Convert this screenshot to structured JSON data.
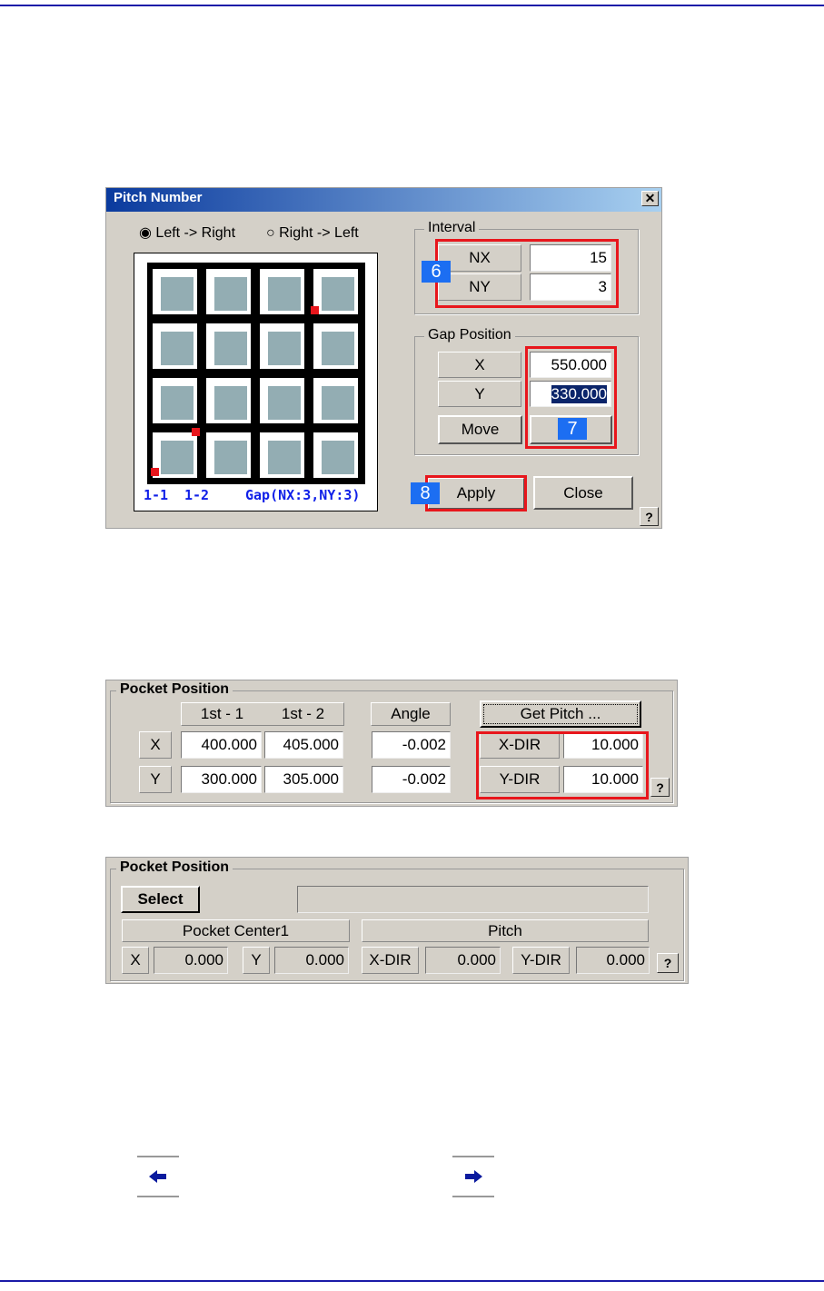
{
  "pitch_dialog": {
    "title": "Pitch Number",
    "close_glyph": "✕",
    "radio_left_right": "Left -> Right",
    "radio_right_left": "Right -> Left",
    "radio_selected": "Left -> Right",
    "preview": {
      "label_1": "1-1",
      "label_2": "1-2",
      "gap_label": "Gap(NX:3,NY:3)"
    },
    "interval": {
      "title": "Interval",
      "nx_label": "NX",
      "nx_value": "15",
      "ny_label": "NY",
      "ny_value": "3",
      "badge": "6"
    },
    "gap_position": {
      "title": "Gap Position",
      "x_label": "X",
      "x_value": "550.000",
      "y_label": "Y",
      "y_value": "330.000",
      "move_label": "Move",
      "badge": "7"
    },
    "apply_label": "Apply",
    "apply_badge": "8",
    "close_label": "Close",
    "help": "?"
  },
  "pocket_panel_1": {
    "title": "Pocket Position",
    "col_1": "1st - 1",
    "col_2": "1st  - 2",
    "angle": "Angle",
    "get_pitch": "Get Pitch ...",
    "rows": [
      {
        "label": "X",
        "v1": "400.000",
        "v2": "405.000",
        "angle": "-0.002",
        "dir_label": "X-DIR",
        "dir_value": "10.000"
      },
      {
        "label": "Y",
        "v1": "300.000",
        "v2": "305.000",
        "angle": "-0.002",
        "dir_label": "Y-DIR",
        "dir_value": "10.000"
      }
    ],
    "help": "?"
  },
  "pocket_panel_2": {
    "title": "Pocket Position",
    "select": "Select",
    "status_value": "",
    "center_header": "Pocket Center1",
    "pitch_header": "Pitch",
    "x_label": "X",
    "x_value": "0.000",
    "y_label": "Y",
    "y_value": "0.000",
    "xdir_label": "X-DIR",
    "xdir_value": "0.000",
    "ydir_label": "Y-DIR",
    "ydir_value": "0.000",
    "help": "?"
  },
  "nav": {
    "prev_icon": "arrow-left-icon",
    "next_icon": "arrow-right-icon"
  },
  "colors": {
    "highlight": "#e8161c",
    "badge": "#1c6ef2",
    "rule": "#1a1aa8"
  }
}
